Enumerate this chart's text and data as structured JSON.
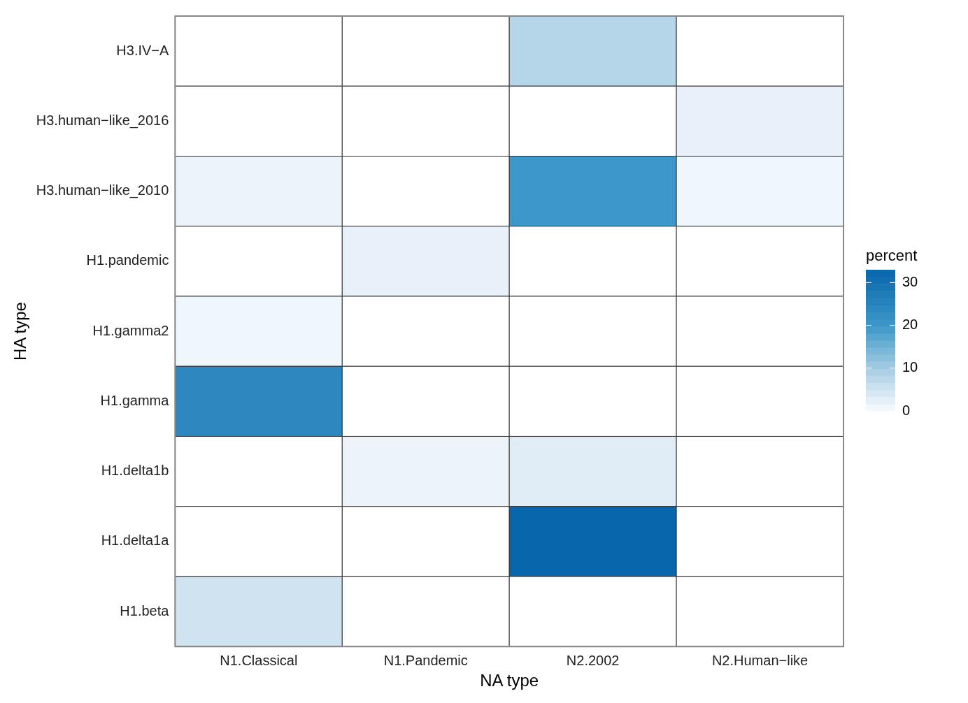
{
  "chart_data": {
    "type": "heatmap",
    "xlabel": "NA type",
    "ylabel": "HA type",
    "clabel": "percent",
    "categories": [
      "N1.Classical",
      "N1.Pandemic",
      "N2.2002",
      "N2.Human−like"
    ],
    "y_categories": [
      "H3.IV−A",
      "H3.human−like_2016",
      "H3.human−like_2010",
      "H1.pandemic",
      "H1.gamma2",
      "H1.gamma",
      "H1.delta1b",
      "H1.delta1a",
      "H1.beta"
    ],
    "cells": [
      [
        null,
        null,
        8,
        null
      ],
      [
        null,
        null,
        null,
        2
      ],
      [
        1.5,
        null,
        20,
        1
      ],
      [
        null,
        2,
        null,
        null
      ],
      [
        1,
        null,
        null,
        null
      ],
      [
        24,
        null,
        null,
        null
      ],
      [
        null,
        1.5,
        3,
        null
      ],
      [
        null,
        null,
        33,
        null
      ],
      [
        5,
        null,
        null,
        null
      ]
    ],
    "clim": [
      0,
      33
    ],
    "cticks": [
      0,
      10,
      20,
      30
    ]
  }
}
